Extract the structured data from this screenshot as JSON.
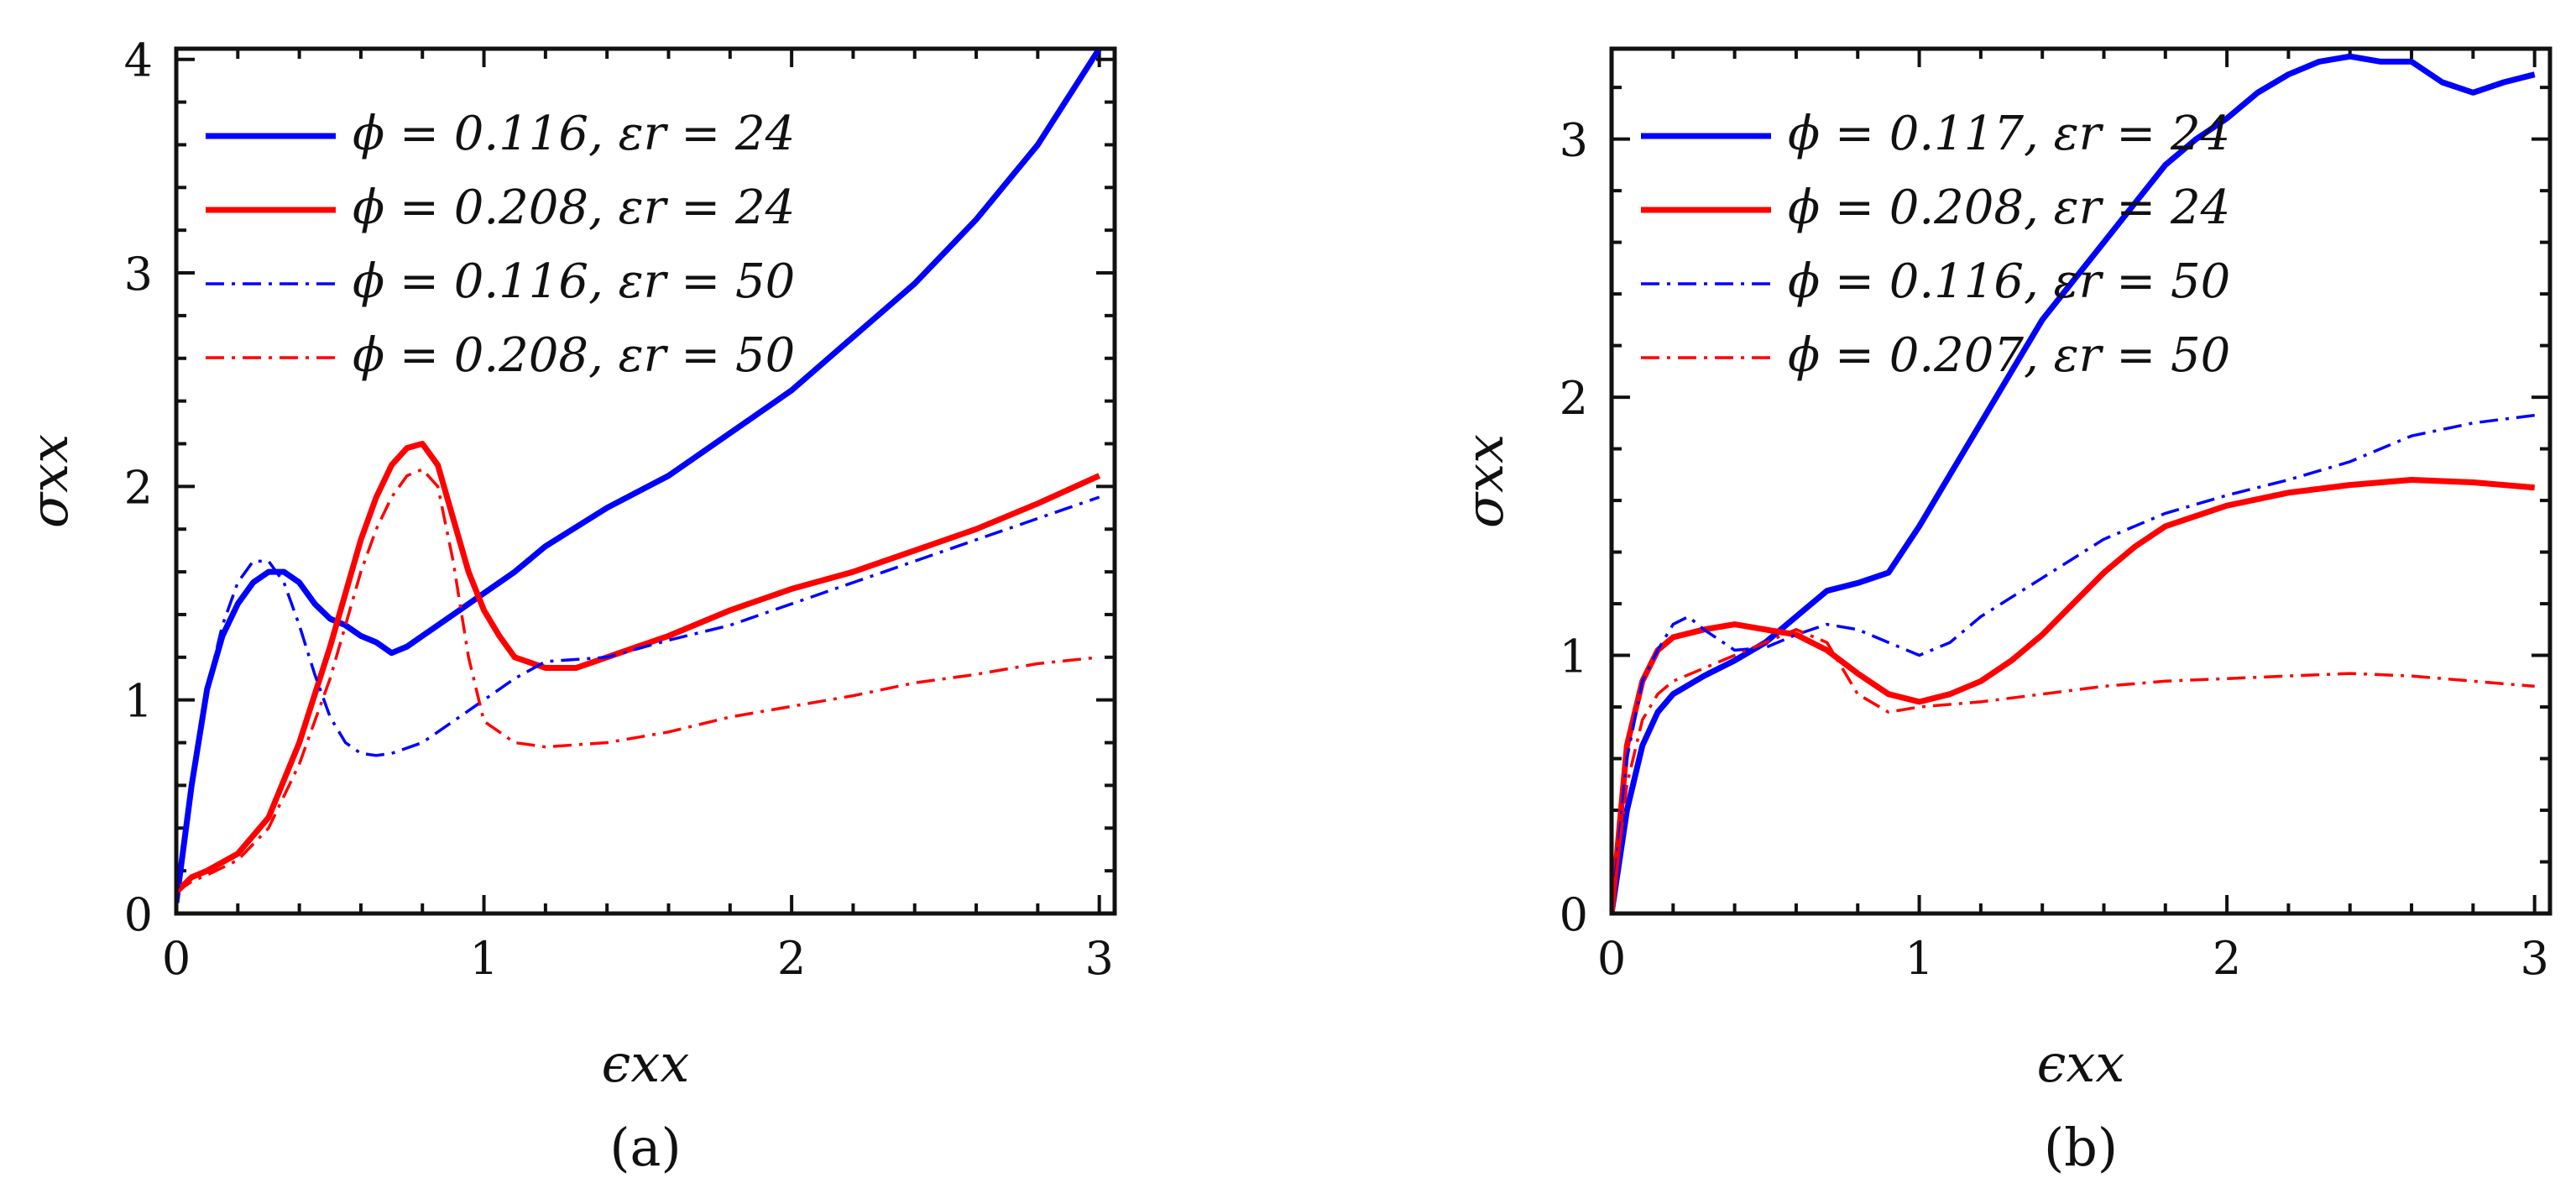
{
  "chart_data": [
    {
      "type": "line",
      "panel_label": "(a)",
      "xlabel": "ϵxx",
      "ylabel": "σxx",
      "xlim": [
        0,
        3.05
      ],
      "ylim": [
        0,
        4.05
      ],
      "xticks": [
        0,
        1,
        2,
        3
      ],
      "yticks": [
        0,
        1,
        2,
        3,
        4
      ],
      "legend_position": "top-left",
      "series": [
        {
          "name": "ϕ = 0.116, εr = 24",
          "color": "#0000ff",
          "style": "solid",
          "width": "thick",
          "x": [
            0,
            0.05,
            0.1,
            0.15,
            0.2,
            0.25,
            0.3,
            0.35,
            0.4,
            0.45,
            0.5,
            0.55,
            0.6,
            0.65,
            0.7,
            0.75,
            0.8,
            0.9,
            1.0,
            1.1,
            1.2,
            1.4,
            1.6,
            1.8,
            2.0,
            2.2,
            2.4,
            2.6,
            2.8,
            3.0
          ],
          "y": [
            0.05,
            0.6,
            1.05,
            1.3,
            1.45,
            1.55,
            1.6,
            1.6,
            1.55,
            1.45,
            1.38,
            1.35,
            1.3,
            1.27,
            1.22,
            1.25,
            1.3,
            1.4,
            1.5,
            1.6,
            1.72,
            1.9,
            2.05,
            2.25,
            2.45,
            2.7,
            2.95,
            3.25,
            3.6,
            4.05
          ]
        },
        {
          "name": "ϕ = 0.208, εr = 24",
          "color": "#ff0000",
          "style": "solid",
          "width": "thick",
          "x": [
            0,
            0.05,
            0.1,
            0.2,
            0.3,
            0.4,
            0.5,
            0.55,
            0.6,
            0.65,
            0.7,
            0.75,
            0.8,
            0.85,
            0.9,
            0.95,
            1.0,
            1.05,
            1.1,
            1.2,
            1.3,
            1.4,
            1.6,
            1.8,
            2.0,
            2.2,
            2.4,
            2.6,
            2.8,
            3.0
          ],
          "y": [
            0.1,
            0.17,
            0.2,
            0.28,
            0.45,
            0.8,
            1.25,
            1.5,
            1.75,
            1.95,
            2.1,
            2.18,
            2.2,
            2.1,
            1.85,
            1.6,
            1.42,
            1.3,
            1.2,
            1.15,
            1.15,
            1.2,
            1.3,
            1.42,
            1.52,
            1.6,
            1.7,
            1.8,
            1.92,
            2.05
          ]
        },
        {
          "name": "ϕ = 0.116, εr = 50",
          "color": "#0000ff",
          "style": "dashdot",
          "width": "thin",
          "x": [
            0,
            0.05,
            0.1,
            0.15,
            0.2,
            0.25,
            0.3,
            0.35,
            0.4,
            0.45,
            0.5,
            0.55,
            0.6,
            0.65,
            0.7,
            0.8,
            0.9,
            1.0,
            1.1,
            1.2,
            1.4,
            1.6,
            1.8,
            2.0,
            2.2,
            2.4,
            2.6,
            2.8,
            3.0
          ],
          "y": [
            0.05,
            0.6,
            1.05,
            1.35,
            1.55,
            1.65,
            1.65,
            1.55,
            1.35,
            1.12,
            0.92,
            0.8,
            0.75,
            0.74,
            0.75,
            0.8,
            0.9,
            1.0,
            1.1,
            1.18,
            1.2,
            1.28,
            1.35,
            1.45,
            1.55,
            1.65,
            1.75,
            1.85,
            1.95
          ]
        },
        {
          "name": "ϕ = 0.208, εr = 50",
          "color": "#ff0000",
          "style": "dashdot",
          "width": "thin",
          "x": [
            0,
            0.05,
            0.1,
            0.2,
            0.3,
            0.4,
            0.5,
            0.55,
            0.6,
            0.65,
            0.7,
            0.75,
            0.8,
            0.85,
            0.9,
            0.95,
            1.0,
            1.1,
            1.2,
            1.4,
            1.6,
            1.8,
            2.0,
            2.2,
            2.4,
            2.6,
            2.8,
            3.0
          ],
          "y": [
            0.1,
            0.15,
            0.18,
            0.25,
            0.4,
            0.7,
            1.1,
            1.35,
            1.6,
            1.8,
            1.95,
            2.05,
            2.08,
            2.0,
            1.65,
            1.2,
            0.9,
            0.8,
            0.78,
            0.8,
            0.85,
            0.92,
            0.97,
            1.02,
            1.08,
            1.12,
            1.17,
            1.2
          ]
        }
      ]
    },
    {
      "type": "line",
      "panel_label": "(b)",
      "xlabel": "ϵxx",
      "ylabel": "σxx",
      "xlim": [
        0,
        3.05
      ],
      "ylim": [
        0,
        3.35
      ],
      "xticks": [
        0,
        1,
        2,
        3
      ],
      "yticks": [
        0,
        1,
        2,
        3
      ],
      "legend_position": "top-left",
      "series": [
        {
          "name": "ϕ = 0.117, εr = 24",
          "color": "#0000ff",
          "style": "solid",
          "width": "thick",
          "x": [
            0,
            0.05,
            0.1,
            0.15,
            0.2,
            0.3,
            0.4,
            0.5,
            0.6,
            0.7,
            0.8,
            0.9,
            1.0,
            1.1,
            1.2,
            1.3,
            1.4,
            1.5,
            1.6,
            1.7,
            1.8,
            1.9,
            2.0,
            2.1,
            2.2,
            2.3,
            2.4,
            2.5,
            2.6,
            2.7,
            2.8,
            2.9,
            3.0
          ],
          "y": [
            0,
            0.4,
            0.65,
            0.78,
            0.85,
            0.92,
            0.98,
            1.05,
            1.15,
            1.25,
            1.28,
            1.32,
            1.5,
            1.7,
            1.9,
            2.1,
            2.3,
            2.45,
            2.6,
            2.75,
            2.9,
            3.0,
            3.08,
            3.18,
            3.25,
            3.3,
            3.32,
            3.3,
            3.3,
            3.22,
            3.18,
            3.22,
            3.25
          ]
        },
        {
          "name": "ϕ = 0.208, εr = 24",
          "color": "#ff0000",
          "style": "solid",
          "width": "thick",
          "x": [
            0,
            0.05,
            0.1,
            0.15,
            0.2,
            0.3,
            0.4,
            0.5,
            0.6,
            0.7,
            0.8,
            0.9,
            1.0,
            1.1,
            1.2,
            1.3,
            1.4,
            1.5,
            1.6,
            1.7,
            1.8,
            2.0,
            2.2,
            2.4,
            2.6,
            2.8,
            3.0
          ],
          "y": [
            0,
            0.65,
            0.9,
            1.02,
            1.07,
            1.1,
            1.12,
            1.1,
            1.08,
            1.02,
            0.93,
            0.85,
            0.82,
            0.85,
            0.9,
            0.98,
            1.08,
            1.2,
            1.32,
            1.42,
            1.5,
            1.58,
            1.63,
            1.66,
            1.68,
            1.67,
            1.65
          ]
        },
        {
          "name": "ϕ = 0.116, εr = 50",
          "color": "#0000ff",
          "style": "dashdot",
          "width": "thin",
          "x": [
            0,
            0.05,
            0.1,
            0.15,
            0.2,
            0.25,
            0.3,
            0.4,
            0.5,
            0.6,
            0.7,
            0.8,
            0.9,
            1.0,
            1.1,
            1.2,
            1.4,
            1.6,
            1.8,
            2.0,
            2.2,
            2.4,
            2.6,
            2.8,
            3.0
          ],
          "y": [
            0,
            0.6,
            0.9,
            1.02,
            1.12,
            1.15,
            1.1,
            1.02,
            1.03,
            1.08,
            1.12,
            1.1,
            1.05,
            1.0,
            1.05,
            1.15,
            1.3,
            1.45,
            1.55,
            1.62,
            1.68,
            1.75,
            1.85,
            1.9,
            1.93
          ]
        },
        {
          "name": "ϕ = 0.207, εr = 50",
          "color": "#ff0000",
          "style": "dashdot",
          "width": "thin",
          "x": [
            0,
            0.05,
            0.1,
            0.15,
            0.2,
            0.3,
            0.4,
            0.5,
            0.6,
            0.7,
            0.8,
            0.9,
            1.0,
            1.2,
            1.4,
            1.6,
            1.8,
            2.0,
            2.2,
            2.4,
            2.6,
            2.8,
            3.0
          ],
          "y": [
            0,
            0.5,
            0.75,
            0.85,
            0.9,
            0.95,
            1.0,
            1.05,
            1.1,
            1.05,
            0.85,
            0.78,
            0.8,
            0.82,
            0.85,
            0.88,
            0.9,
            0.91,
            0.92,
            0.93,
            0.92,
            0.9,
            0.88
          ]
        }
      ]
    }
  ]
}
